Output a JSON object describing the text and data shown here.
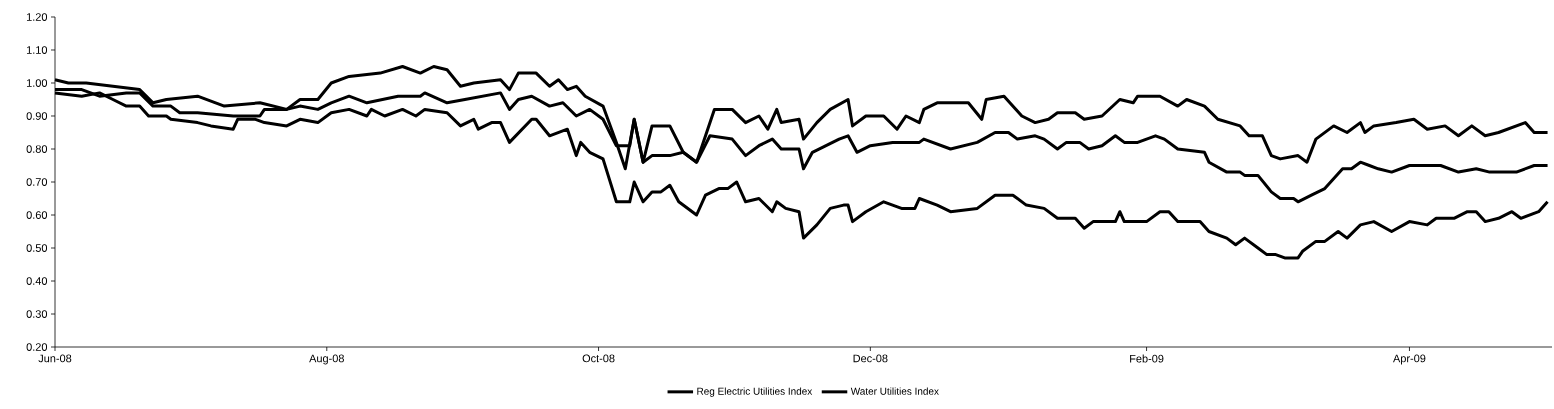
{
  "chart_data": {
    "type": "line",
    "ylim": [
      0.2,
      1.2
    ],
    "yticks": [
      {
        "value": 0.2,
        "label": "0.20"
      },
      {
        "value": 0.3,
        "label": "0.30"
      },
      {
        "value": 0.4,
        "label": "0.40"
      },
      {
        "value": 0.5,
        "label": "0.50"
      },
      {
        "value": 0.6,
        "label": "0.60"
      },
      {
        "value": 0.7,
        "label": "0.70"
      },
      {
        "value": 0.8,
        "label": "0.80"
      },
      {
        "value": 0.9,
        "label": "0.90"
      },
      {
        "value": 1.0,
        "label": "1.00"
      },
      {
        "value": 1.1,
        "label": "1.10"
      },
      {
        "value": 1.2,
        "label": "1.20"
      }
    ],
    "xlim": [
      "2008-06-01",
      "2009-05-03"
    ],
    "xticks": [
      {
        "value": "2008-06-01",
        "label": "Jun-08"
      },
      {
        "value": "2008-08-01",
        "label": "Aug-08"
      },
      {
        "value": "2008-10-01",
        "label": "Oct-08"
      },
      {
        "value": "2008-12-01",
        "label": "Dec-08"
      },
      {
        "value": "2009-02-01",
        "label": "Feb-09"
      },
      {
        "value": "2009-04-01",
        "label": "Apr-09"
      }
    ],
    "grid": false,
    "legend": "bottom",
    "marker": "none",
    "line_style": "solid",
    "series": [
      {
        "color": "#000000",
        "x": [
          "2008-06-01",
          "2008-06-07",
          "2008-06-11",
          "2008-06-14",
          "2008-06-17",
          "2008-06-20",
          "2008-06-22",
          "2008-06-26",
          "2008-06-27",
          "2008-07-03",
          "2008-07-06",
          "2008-07-11",
          "2008-07-12",
          "2008-07-16",
          "2008-07-18",
          "2008-07-23",
          "2008-07-26",
          "2008-07-30",
          "2008-08-02",
          "2008-08-06",
          "2008-08-10",
          "2008-08-11",
          "2008-08-14",
          "2008-08-18",
          "2008-08-21",
          "2008-08-23",
          "2008-08-28",
          "2008-08-31",
          "2008-09-03",
          "2008-09-04",
          "2008-09-07",
          "2008-09-09",
          "2008-09-11",
          "2008-09-16",
          "2008-09-17",
          "2008-09-20",
          "2008-09-24",
          "2008-09-26",
          "2008-09-27",
          "2008-09-29",
          "2008-10-02",
          "2008-10-05",
          "2008-10-08",
          "2008-10-09",
          "2008-10-11",
          "2008-10-13",
          "2008-10-15",
          "2008-10-17",
          "2008-10-19",
          "2008-10-21",
          "2008-10-23",
          "2008-10-25",
          "2008-10-28",
          "2008-10-30",
          "2008-11-01",
          "2008-11-03",
          "2008-11-06",
          "2008-11-09",
          "2008-11-10",
          "2008-11-12",
          "2008-11-15",
          "2008-11-16",
          "2008-11-19",
          "2008-11-22",
          "2008-11-25",
          "2008-11-26",
          "2008-11-27",
          "2008-11-30",
          "2008-12-04",
          "2008-12-08",
          "2008-12-11",
          "2008-12-12",
          "2008-12-16",
          "2008-12-19",
          "2008-12-25",
          "2008-12-29",
          "2009-01-02",
          "2009-01-05",
          "2009-01-09",
          "2009-01-12",
          "2009-01-16",
          "2009-01-18",
          "2009-01-20",
          "2009-01-25",
          "2009-01-26",
          "2009-01-27",
          "2009-02-01",
          "2009-02-04",
          "2009-02-06",
          "2009-02-08",
          "2009-02-13",
          "2009-02-15",
          "2009-02-19",
          "2009-02-21",
          "2009-02-23",
          "2009-02-26",
          "2009-02-28",
          "2009-03-02",
          "2009-03-04",
          "2009-03-07",
          "2009-03-08",
          "2009-03-11",
          "2009-03-13",
          "2009-03-16",
          "2009-03-18",
          "2009-03-21",
          "2009-03-24",
          "2009-03-28",
          "2009-04-01",
          "2009-04-05",
          "2009-04-07",
          "2009-04-11",
          "2009-04-14",
          "2009-04-16",
          "2009-04-18",
          "2009-04-21",
          "2009-04-24",
          "2009-04-26",
          "2009-04-30",
          "2009-05-02"
        ],
        "values": [
          0.97,
          0.96,
          0.97,
          0.95,
          0.93,
          0.93,
          0.9,
          0.9,
          0.89,
          0.88,
          0.87,
          0.86,
          0.89,
          0.89,
          0.88,
          0.87,
          0.89,
          0.88,
          0.91,
          0.92,
          0.9,
          0.92,
          0.9,
          0.92,
          0.9,
          0.92,
          0.91,
          0.87,
          0.89,
          0.86,
          0.88,
          0.88,
          0.82,
          0.89,
          0.89,
          0.84,
          0.86,
          0.78,
          0.82,
          0.79,
          0.77,
          0.64,
          0.64,
          0.7,
          0.64,
          0.67,
          0.67,
          0.69,
          0.64,
          0.62,
          0.6,
          0.66,
          0.68,
          0.68,
          0.7,
          0.64,
          0.65,
          0.61,
          0.64,
          0.62,
          0.61,
          0.53,
          0.57,
          0.62,
          0.63,
          0.63,
          0.58,
          0.61,
          0.64,
          0.62,
          0.62,
          0.65,
          0.63,
          0.61,
          0.62,
          0.66,
          0.66,
          0.63,
          0.62,
          0.59,
          0.59,
          0.56,
          0.58,
          0.58,
          0.61,
          0.58,
          0.58,
          0.61,
          0.61,
          0.58,
          0.58,
          0.55,
          0.53,
          0.51,
          0.53,
          0.5,
          0.48,
          0.48,
          0.47,
          0.47,
          0.49,
          0.52,
          0.52,
          0.55,
          0.53,
          0.57,
          0.58,
          0.55,
          0.58,
          0.57,
          0.59,
          0.59,
          0.61,
          0.61,
          0.58,
          0.59,
          0.61,
          0.59,
          0.61,
          0.64
        ]
      },
      {
        "name": "Reg Electric Utilities Index",
        "color": "#000000",
        "x": [
          "2008-06-01",
          "2008-06-07",
          "2008-06-11",
          "2008-06-17",
          "2008-06-20",
          "2008-06-23",
          "2008-06-27",
          "2008-06-29",
          "2008-07-03",
          "2008-07-11",
          "2008-07-17",
          "2008-07-18",
          "2008-07-23",
          "2008-07-26",
          "2008-07-30",
          "2008-08-02",
          "2008-08-06",
          "2008-08-10",
          "2008-08-17",
          "2008-08-22",
          "2008-08-23",
          "2008-08-28",
          "2008-09-01",
          "2008-09-09",
          "2008-09-11",
          "2008-09-13",
          "2008-09-16",
          "2008-09-20",
          "2008-09-23",
          "2008-09-26",
          "2008-09-29",
          "2008-10-02",
          "2008-10-05",
          "2008-10-08",
          "2008-10-09",
          "2008-10-11",
          "2008-10-13",
          "2008-10-17",
          "2008-10-20",
          "2008-10-23",
          "2008-10-26",
          "2008-10-31",
          "2008-11-03",
          "2008-11-06",
          "2008-11-09",
          "2008-11-11",
          "2008-11-15",
          "2008-11-16",
          "2008-11-18",
          "2008-11-24",
          "2008-11-26",
          "2008-11-28",
          "2008-12-01",
          "2008-12-06",
          "2008-12-12",
          "2008-12-13",
          "2008-12-19",
          "2008-12-25",
          "2008-12-29",
          "2009-01-01",
          "2009-01-03",
          "2009-01-07",
          "2009-01-09",
          "2009-01-12",
          "2009-01-14",
          "2009-01-17",
          "2009-01-19",
          "2009-01-22",
          "2009-01-25",
          "2009-01-27",
          "2009-01-30",
          "2009-02-03",
          "2009-02-05",
          "2009-02-08",
          "2009-02-14",
          "2009-02-15",
          "2009-02-19",
          "2009-02-22",
          "2009-02-23",
          "2009-02-26",
          "2009-03-01",
          "2009-03-03",
          "2009-03-06",
          "2009-03-07",
          "2009-03-10",
          "2009-03-13",
          "2009-03-17",
          "2009-03-19",
          "2009-03-21",
          "2009-03-23",
          "2009-03-25",
          "2009-03-28",
          "2009-04-01",
          "2009-04-08",
          "2009-04-12",
          "2009-04-16",
          "2009-04-19",
          "2009-04-25",
          "2009-04-29",
          "2009-05-02"
        ],
        "values": [
          0.98,
          0.98,
          0.96,
          0.97,
          0.97,
          0.93,
          0.93,
          0.91,
          0.91,
          0.9,
          0.9,
          0.92,
          0.92,
          0.93,
          0.92,
          0.94,
          0.96,
          0.94,
          0.96,
          0.96,
          0.97,
          0.94,
          0.95,
          0.97,
          0.92,
          0.95,
          0.96,
          0.93,
          0.94,
          0.9,
          0.92,
          0.89,
          0.81,
          0.81,
          0.89,
          0.76,
          0.78,
          0.78,
          0.79,
          0.76,
          0.84,
          0.83,
          0.78,
          0.81,
          0.83,
          0.8,
          0.8,
          0.74,
          0.79,
          0.83,
          0.84,
          0.79,
          0.81,
          0.82,
          0.82,
          0.83,
          0.8,
          0.82,
          0.85,
          0.85,
          0.83,
          0.84,
          0.83,
          0.8,
          0.82,
          0.82,
          0.8,
          0.81,
          0.84,
          0.82,
          0.82,
          0.84,
          0.83,
          0.8,
          0.79,
          0.76,
          0.73,
          0.73,
          0.72,
          0.72,
          0.67,
          0.65,
          0.65,
          0.64,
          0.66,
          0.68,
          0.74,
          0.74,
          0.76,
          0.75,
          0.74,
          0.73,
          0.75,
          0.75,
          0.73,
          0.74,
          0.73,
          0.73,
          0.75,
          0.75
        ]
      },
      {
        "name": "Water Utilities Index",
        "color": "#000000",
        "x": [
          "2008-06-01",
          "2008-06-04",
          "2008-06-08",
          "2008-06-14",
          "2008-06-20",
          "2008-06-23",
          "2008-06-26",
          "2008-07-03",
          "2008-07-09",
          "2008-07-17",
          "2008-07-23",
          "2008-07-26",
          "2008-07-30",
          "2008-08-02",
          "2008-08-06",
          "2008-08-13",
          "2008-08-18",
          "2008-08-22",
          "2008-08-25",
          "2008-08-28",
          "2008-08-31",
          "2008-09-03",
          "2008-09-09",
          "2008-09-11",
          "2008-09-13",
          "2008-09-17",
          "2008-09-20",
          "2008-09-22",
          "2008-09-24",
          "2008-09-26",
          "2008-09-28",
          "2008-10-02",
          "2008-10-05",
          "2008-10-07",
          "2008-10-09",
          "2008-10-11",
          "2008-10-13",
          "2008-10-17",
          "2008-10-20",
          "2008-10-23",
          "2008-10-27",
          "2008-10-31",
          "2008-11-03",
          "2008-11-06",
          "2008-11-08",
          "2008-11-10",
          "2008-11-11",
          "2008-11-15",
          "2008-11-16",
          "2008-11-19",
          "2008-11-22",
          "2008-11-26",
          "2008-11-27",
          "2008-11-30",
          "2008-12-04",
          "2008-12-07",
          "2008-12-09",
          "2008-12-12",
          "2008-12-13",
          "2008-12-16",
          "2008-12-23",
          "2008-12-26",
          "2008-12-27",
          "2008-12-31",
          "2009-01-04",
          "2009-01-07",
          "2009-01-10",
          "2009-01-12",
          "2009-01-16",
          "2009-01-18",
          "2009-01-22",
          "2009-01-26",
          "2009-01-29",
          "2009-01-30",
          "2009-02-04",
          "2009-02-08",
          "2009-02-10",
          "2009-02-14",
          "2009-02-17",
          "2009-02-22",
          "2009-02-24",
          "2009-02-27",
          "2009-03-01",
          "2009-03-03",
          "2009-03-07",
          "2009-03-09",
          "2009-03-11",
          "2009-03-15",
          "2009-03-18",
          "2009-03-21",
          "2009-03-22",
          "2009-03-24",
          "2009-03-29",
          "2009-04-02",
          "2009-04-05",
          "2009-04-09",
          "2009-04-12",
          "2009-04-15",
          "2009-04-18",
          "2009-04-21",
          "2009-04-27",
          "2009-04-29",
          "2009-05-02"
        ],
        "values": [
          1.01,
          1.0,
          1.0,
          0.99,
          0.98,
          0.94,
          0.95,
          0.96,
          0.93,
          0.94,
          0.92,
          0.95,
          0.95,
          1.0,
          1.02,
          1.03,
          1.05,
          1.03,
          1.05,
          1.04,
          0.99,
          1.0,
          1.01,
          0.98,
          1.03,
          1.03,
          0.99,
          1.01,
          0.98,
          0.99,
          0.96,
          0.93,
          0.82,
          0.74,
          0.89,
          0.76,
          0.87,
          0.87,
          0.79,
          0.76,
          0.92,
          0.92,
          0.88,
          0.9,
          0.86,
          0.92,
          0.88,
          0.89,
          0.83,
          0.88,
          0.92,
          0.95,
          0.87,
          0.9,
          0.9,
          0.86,
          0.9,
          0.88,
          0.92,
          0.94,
          0.94,
          0.89,
          0.95,
          0.96,
          0.9,
          0.88,
          0.89,
          0.91,
          0.91,
          0.89,
          0.9,
          0.95,
          0.94,
          0.96,
          0.96,
          0.93,
          0.95,
          0.93,
          0.89,
          0.87,
          0.84,
          0.84,
          0.78,
          0.77,
          0.78,
          0.76,
          0.83,
          0.87,
          0.85,
          0.88,
          0.85,
          0.87,
          0.88,
          0.89,
          0.86,
          0.87,
          0.84,
          0.87,
          0.84,
          0.85,
          0.88,
          0.85,
          0.85
        ]
      }
    ]
  }
}
